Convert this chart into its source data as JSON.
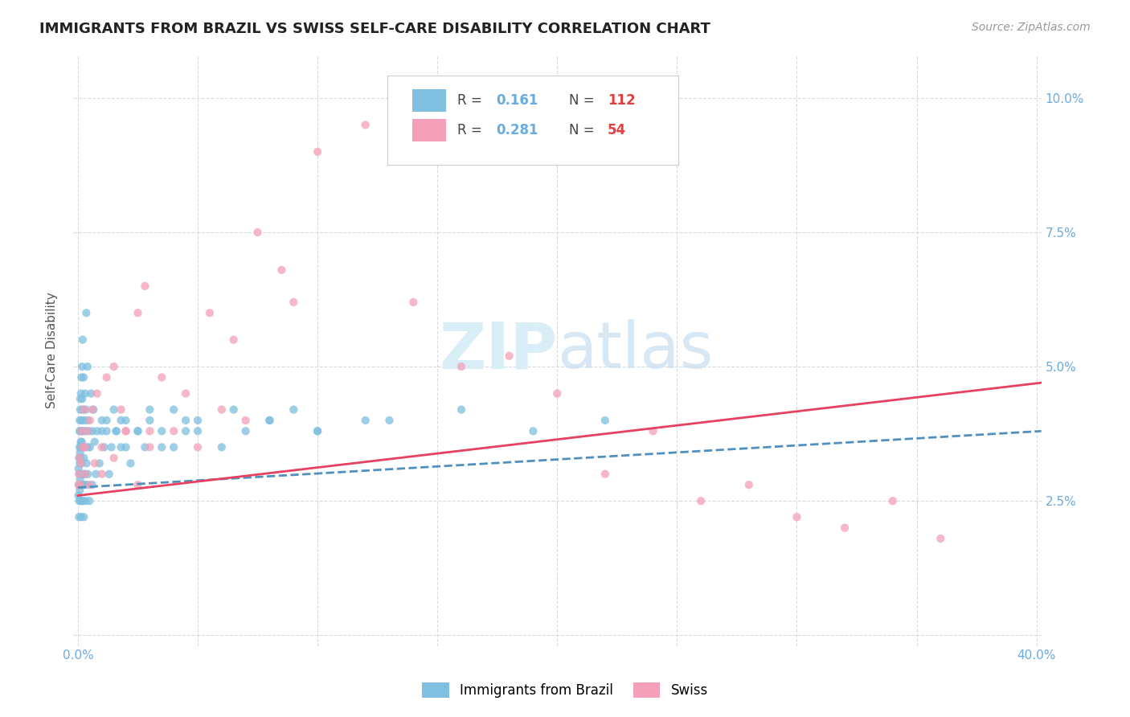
{
  "title": "IMMIGRANTS FROM BRAZIL VS SWISS SELF-CARE DISABILITY CORRELATION CHART",
  "source": "Source: ZipAtlas.com",
  "ylabel": "Self-Care Disability",
  "xlim": [
    -0.002,
    0.402
  ],
  "ylim": [
    -0.002,
    0.108
  ],
  "xticks": [
    0.0,
    0.05,
    0.1,
    0.15,
    0.2,
    0.25,
    0.3,
    0.35,
    0.4
  ],
  "yticks": [
    0.0,
    0.025,
    0.05,
    0.075,
    0.1
  ],
  "ytick_labels": [
    "",
    "2.5%",
    "5.0%",
    "7.5%",
    "10.0%"
  ],
  "xtick_labels_show": [
    "0.0%",
    "40.0%"
  ],
  "legend_blue_R": "0.161",
  "legend_blue_N": "112",
  "legend_pink_R": "0.281",
  "legend_pink_N": "54",
  "blue_color": "#7fbfdf",
  "pink_color": "#f4a0b8",
  "blue_line_color": "#5090c0",
  "pink_line_color": "#e84060",
  "title_color": "#222222",
  "tick_color": "#6aabe0",
  "watermark_color": "#daeef8",
  "background_color": "#ffffff",
  "grid_color": "#d0d8e0",
  "blue_scatter_x": [
    0.0002,
    0.0003,
    0.0004,
    0.0005,
    0.0005,
    0.0006,
    0.0006,
    0.0007,
    0.0007,
    0.0007,
    0.0008,
    0.0008,
    0.0008,
    0.0009,
    0.0009,
    0.001,
    0.001,
    0.001,
    0.001,
    0.001,
    0.0012,
    0.0012,
    0.0013,
    0.0013,
    0.0014,
    0.0014,
    0.0015,
    0.0015,
    0.0015,
    0.0016,
    0.0016,
    0.0017,
    0.0017,
    0.0018,
    0.0018,
    0.0019,
    0.002,
    0.002,
    0.002,
    0.002,
    0.0022,
    0.0023,
    0.0024,
    0.0025,
    0.0025,
    0.0026,
    0.0027,
    0.0028,
    0.003,
    0.003,
    0.003,
    0.0032,
    0.0033,
    0.0035,
    0.0036,
    0.0038,
    0.004,
    0.004,
    0.004,
    0.0042,
    0.0045,
    0.0048,
    0.005,
    0.0055,
    0.006,
    0.006,
    0.0065,
    0.007,
    0.0075,
    0.008,
    0.009,
    0.01,
    0.011,
    0.012,
    0.013,
    0.015,
    0.016,
    0.018,
    0.02,
    0.022,
    0.025,
    0.028,
    0.03,
    0.035,
    0.04,
    0.045,
    0.05,
    0.06,
    0.08,
    0.1,
    0.13,
    0.16,
    0.19,
    0.22,
    0.01,
    0.012,
    0.014,
    0.016,
    0.018,
    0.02,
    0.025,
    0.03,
    0.035,
    0.04,
    0.045,
    0.05,
    0.065,
    0.07,
    0.08,
    0.09,
    0.1,
    0.12
  ],
  "blue_scatter_y": [
    0.026,
    0.031,
    0.028,
    0.033,
    0.022,
    0.03,
    0.025,
    0.035,
    0.028,
    0.038,
    0.032,
    0.04,
    0.027,
    0.034,
    0.029,
    0.038,
    0.033,
    0.044,
    0.025,
    0.042,
    0.036,
    0.03,
    0.045,
    0.028,
    0.035,
    0.022,
    0.04,
    0.032,
    0.048,
    0.036,
    0.025,
    0.03,
    0.05,
    0.038,
    0.044,
    0.028,
    0.035,
    0.042,
    0.055,
    0.025,
    0.038,
    0.03,
    0.048,
    0.033,
    0.022,
    0.04,
    0.028,
    0.035,
    0.045,
    0.03,
    0.038,
    0.025,
    0.042,
    0.06,
    0.032,
    0.028,
    0.05,
    0.035,
    0.04,
    0.03,
    0.038,
    0.025,
    0.035,
    0.045,
    0.038,
    0.028,
    0.042,
    0.036,
    0.03,
    0.038,
    0.032,
    0.04,
    0.035,
    0.038,
    0.03,
    0.042,
    0.038,
    0.035,
    0.04,
    0.032,
    0.038,
    0.035,
    0.042,
    0.038,
    0.035,
    0.04,
    0.038,
    0.035,
    0.04,
    0.038,
    0.04,
    0.042,
    0.038,
    0.04,
    0.038,
    0.04,
    0.035,
    0.038,
    0.04,
    0.035,
    0.038,
    0.04,
    0.035,
    0.042,
    0.038,
    0.04,
    0.042,
    0.038,
    0.04,
    0.042,
    0.038,
    0.04
  ],
  "pink_scatter_x": [
    0.0003,
    0.0005,
    0.0007,
    0.0009,
    0.0012,
    0.0015,
    0.002,
    0.0025,
    0.003,
    0.004,
    0.005,
    0.006,
    0.008,
    0.01,
    0.012,
    0.015,
    0.018,
    0.02,
    0.025,
    0.028,
    0.03,
    0.035,
    0.04,
    0.045,
    0.05,
    0.055,
    0.06,
    0.065,
    0.075,
    0.085,
    0.1,
    0.12,
    0.14,
    0.16,
    0.18,
    0.2,
    0.22,
    0.24,
    0.26,
    0.28,
    0.3,
    0.32,
    0.34,
    0.36,
    0.003,
    0.005,
    0.007,
    0.01,
    0.015,
    0.02,
    0.025,
    0.03,
    0.07,
    0.09
  ],
  "pink_scatter_y": [
    0.028,
    0.03,
    0.033,
    0.028,
    0.032,
    0.038,
    0.035,
    0.042,
    0.03,
    0.038,
    0.04,
    0.042,
    0.045,
    0.035,
    0.048,
    0.05,
    0.042,
    0.038,
    0.06,
    0.065,
    0.038,
    0.048,
    0.038,
    0.045,
    0.035,
    0.06,
    0.042,
    0.055,
    0.075,
    0.068,
    0.09,
    0.095,
    0.062,
    0.05,
    0.052,
    0.045,
    0.03,
    0.038,
    0.025,
    0.028,
    0.022,
    0.02,
    0.025,
    0.018,
    0.035,
    0.028,
    0.032,
    0.03,
    0.033,
    0.038,
    0.028,
    0.035,
    0.04,
    0.062
  ],
  "blue_trend_start_x": 0.0,
  "blue_trend_end_x": 0.402,
  "blue_trend_start_y": 0.0275,
  "blue_trend_end_y": 0.038,
  "pink_trend_start_x": 0.0,
  "pink_trend_end_x": 0.402,
  "pink_trend_start_y": 0.026,
  "pink_trend_end_y": 0.047
}
